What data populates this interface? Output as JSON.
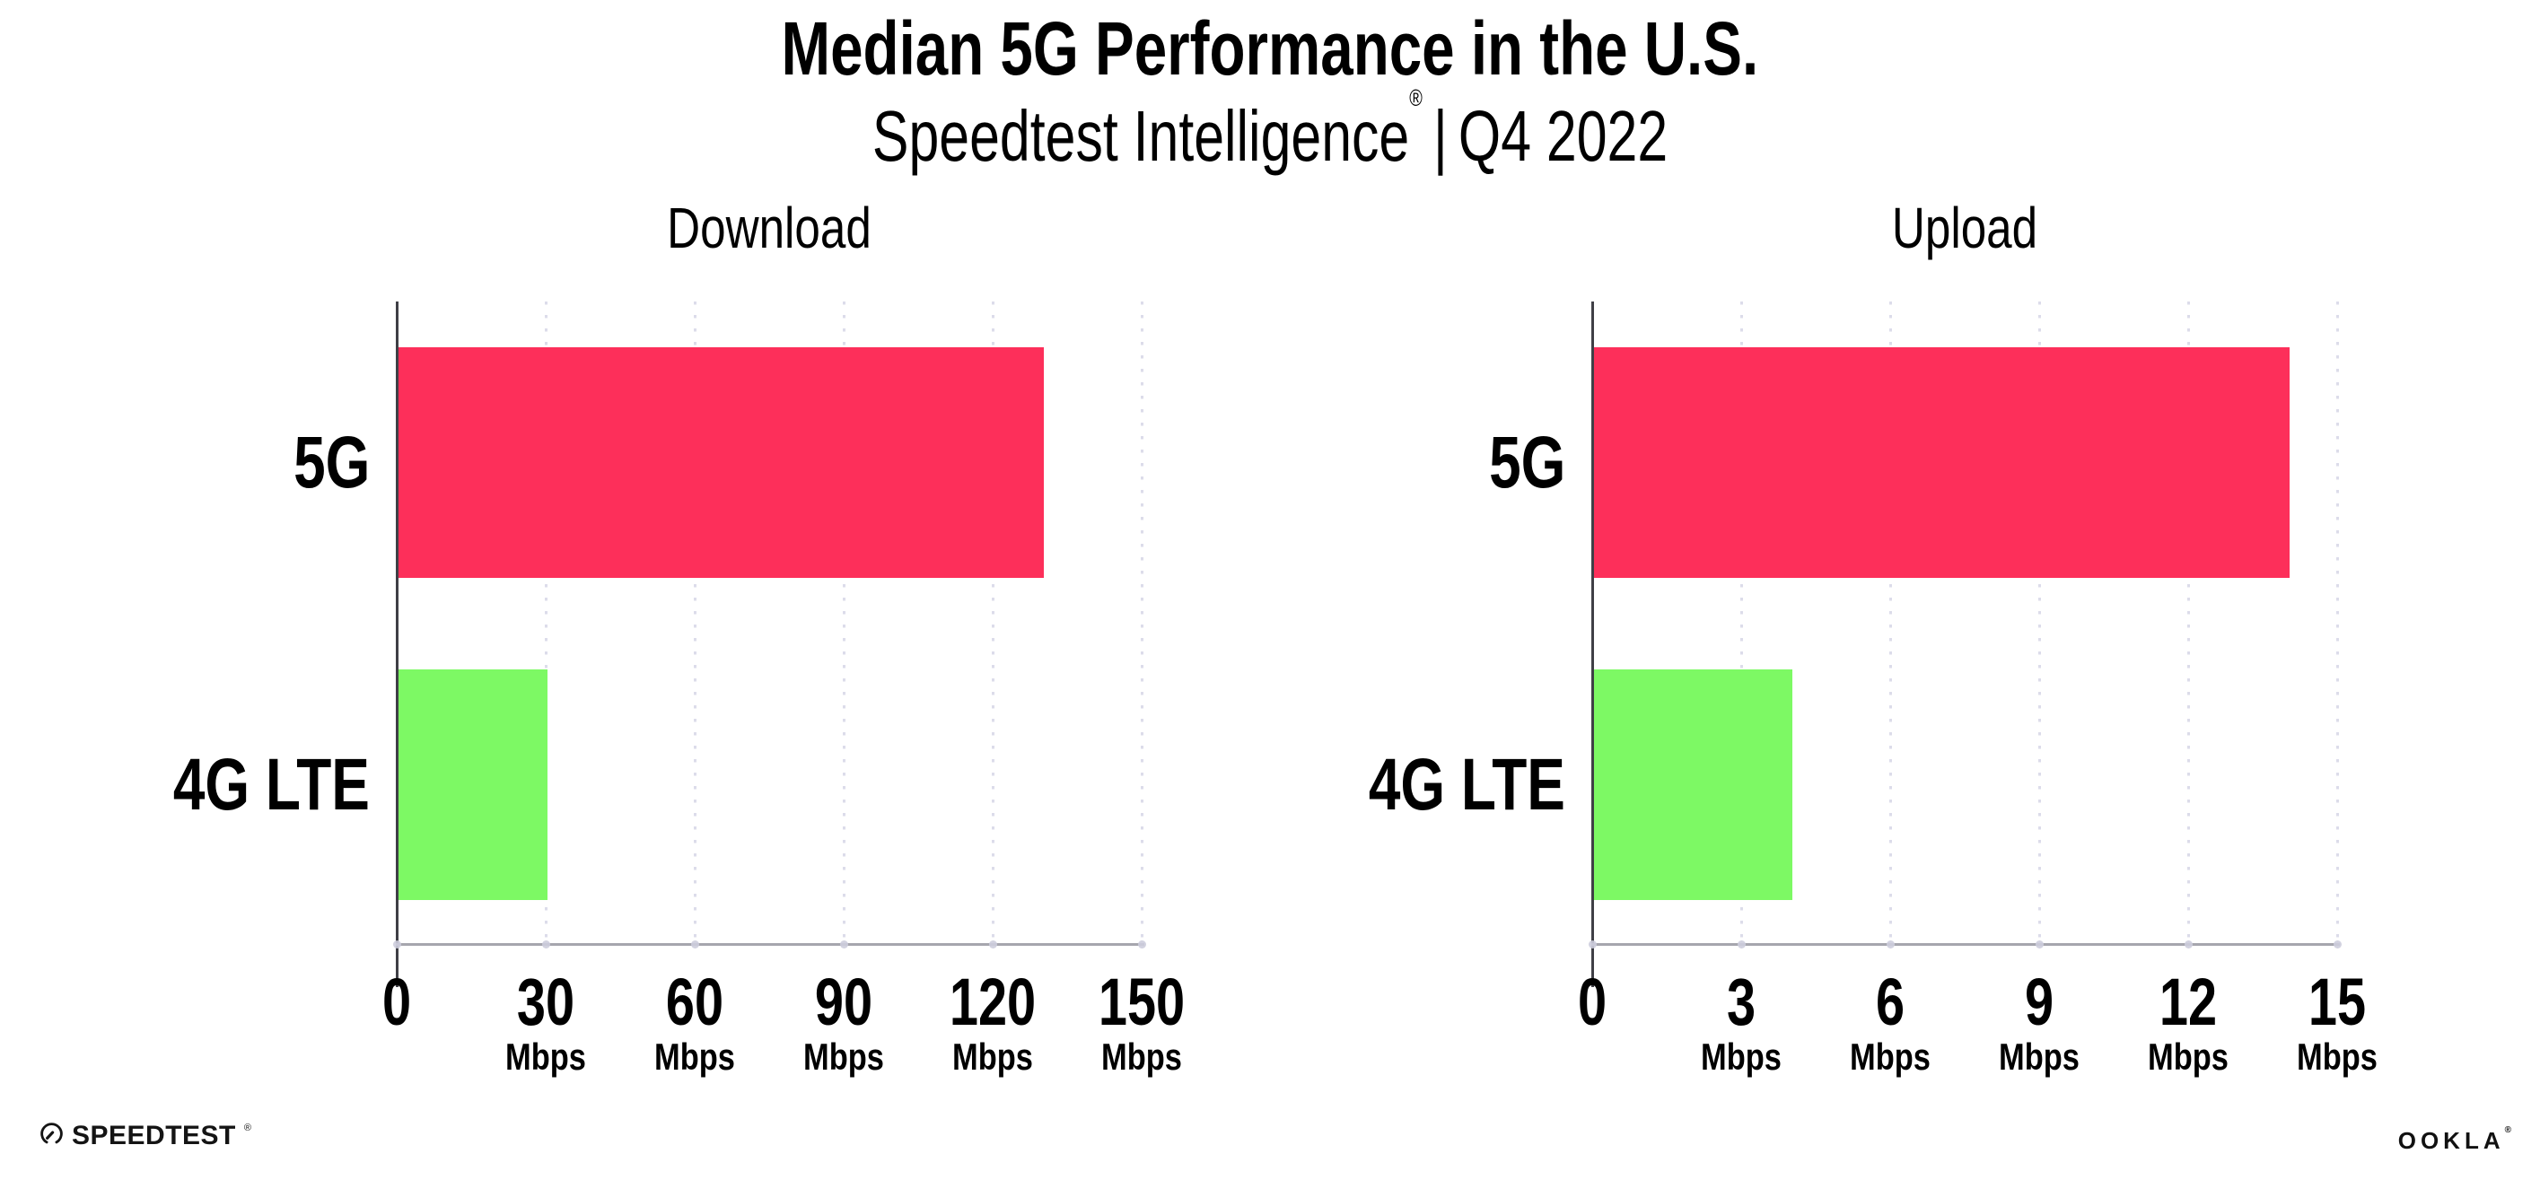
{
  "header": {
    "title": "Median 5G Performance in the U.S.",
    "subtitle": {
      "brand": "Speedtest Intelligence",
      "registered_mark": "®",
      "separator": "|",
      "period": "Q4 2022"
    }
  },
  "chart_data": [
    {
      "type": "bar",
      "orientation": "horizontal",
      "title": "Download",
      "categories": [
        "5G",
        "4G LTE"
      ],
      "values": [
        130,
        30
      ],
      "unit": "Mbps",
      "xlim": [
        0,
        150
      ],
      "xticks": [
        0,
        30,
        60,
        90,
        120,
        150
      ],
      "xticklabels": [
        "0",
        "30",
        "60",
        "90",
        "120",
        "150"
      ],
      "tick_unit": "Mbps",
      "tick_unit_rule": "unit label shown under every tick except 0",
      "bar_colors": [
        "#FD2F5A",
        "#7DF964"
      ],
      "grid": "dotted vertical gridlines at each tick",
      "legend": "none"
    },
    {
      "type": "bar",
      "orientation": "horizontal",
      "title": "Upload",
      "categories": [
        "5G",
        "4G LTE"
      ],
      "values": [
        14,
        4
      ],
      "unit": "Mbps",
      "xlim": [
        0,
        15
      ],
      "xticks": [
        0,
        3,
        6,
        9,
        12,
        15
      ],
      "xticklabels": [
        "0",
        "3",
        "6",
        "9",
        "12",
        "15"
      ],
      "tick_unit": "Mbps",
      "tick_unit_rule": "unit label shown under every tick except 0",
      "bar_colors": [
        "#FD2F5A",
        "#7DF964"
      ],
      "grid": "dotted vertical gridlines at each tick",
      "legend": "none"
    }
  ],
  "colors": {
    "bar_5g": "#FD2F5A",
    "bar_4g_lte": "#7DF964",
    "background": "#FFFFFF",
    "gridline": "#DCDCEA",
    "axis_spine": "#3F3F46",
    "axis_baseline": "#A6A6AE",
    "text": "#000000"
  },
  "footer": {
    "speedtest": {
      "icon": "speedtest-gauge-icon",
      "label": "SPEEDTEST",
      "mark": "®"
    },
    "ookla": {
      "label": "OOKLA",
      "mark": "®"
    }
  }
}
